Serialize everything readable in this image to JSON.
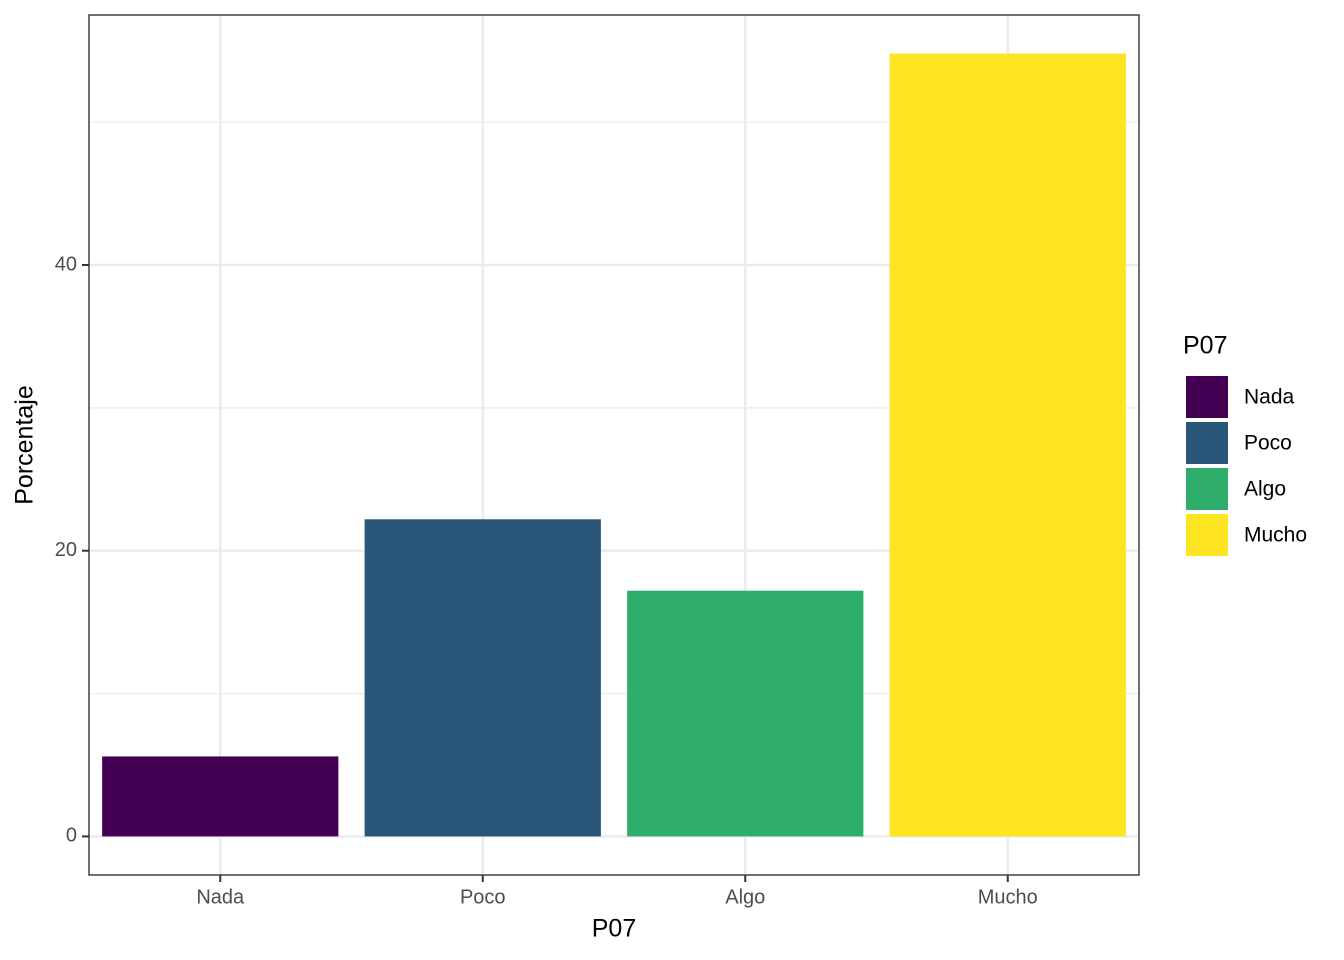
{
  "chart_data": {
    "type": "bar",
    "x_label": "P07",
    "y_label": "Porcentaje",
    "legend_title": "P07",
    "categories": [
      "Nada",
      "Poco",
      "Algo",
      "Mucho"
    ],
    "values": [
      5.6,
      22.2,
      17.2,
      54.8
    ],
    "colors": [
      "#440154",
      "#2a567a",
      "#2fad6b",
      "#fde521"
    ],
    "ylim": [
      -2.7,
      57.5
    ],
    "yticks": [
      0,
      20,
      40
    ],
    "minor_yticks": [
      10,
      30,
      50
    ],
    "grid": true,
    "legend": "right"
  }
}
